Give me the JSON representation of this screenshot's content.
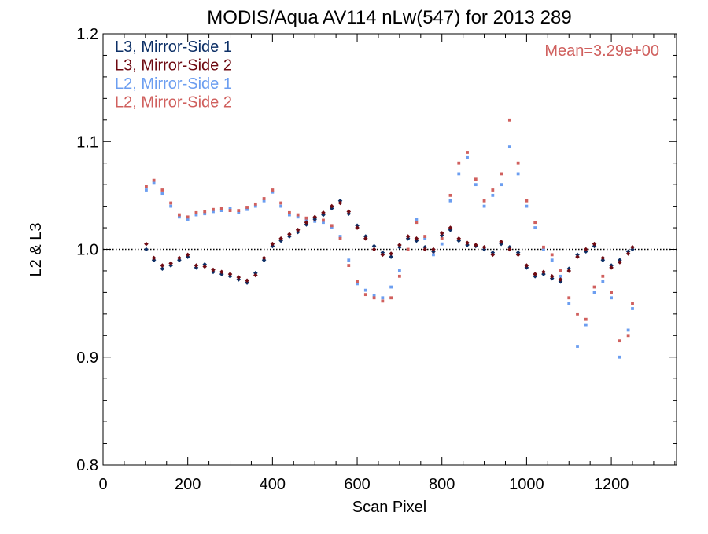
{
  "chart_data": {
    "type": "scatter",
    "title": "MODIS/Aqua AV114 nLw(547) for 2013 289",
    "xlabel": "Scan Pixel",
    "ylabel": "L2 & L3",
    "xlim": [
      0,
      1354
    ],
    "ylim": [
      0.8,
      1.2
    ],
    "x_ticks": [
      0,
      200,
      400,
      600,
      800,
      1000,
      1200
    ],
    "x_tick_labels": [
      "0",
      "200",
      "400",
      "600",
      "800",
      "1000",
      "1200"
    ],
    "y_ticks": [
      0.8,
      0.9,
      1.0,
      1.1,
      1.2
    ],
    "y_tick_labels": [
      "0.8",
      "0.9",
      "1.0",
      "1.1",
      "1.2"
    ],
    "reference_line": 1.0,
    "grid": false,
    "legend_position": "top-left",
    "annotation": "Mean=3.29e+00",
    "annotation_color": "#d0605e",
    "series": [
      {
        "name": "L3, Mirror-Side 1",
        "color": "#0c2f66",
        "marker": "diamond",
        "x": [
          102,
          120,
          140,
          160,
          180,
          200,
          220,
          240,
          260,
          280,
          300,
          320,
          340,
          360,
          380,
          400,
          420,
          440,
          460,
          480,
          500,
          520,
          540,
          560,
          580,
          600,
          620,
          640,
          660,
          680,
          700,
          720,
          740,
          760,
          780,
          800,
          820,
          840,
          860,
          880,
          900,
          920,
          940,
          960,
          980,
          1000,
          1020,
          1040,
          1060,
          1080,
          1100,
          1120,
          1140,
          1160,
          1180,
          1200,
          1220,
          1240,
          1250
        ],
        "y": [
          1.0,
          0.99,
          0.982,
          0.985,
          0.99,
          0.993,
          0.983,
          0.986,
          0.979,
          0.977,
          0.975,
          0.972,
          0.969,
          0.978,
          0.99,
          1.003,
          1.008,
          1.012,
          1.016,
          1.023,
          1.028,
          1.032,
          1.038,
          1.045,
          1.033,
          1.022,
          1.012,
          1.003,
          0.997,
          0.993,
          1.002,
          1.01,
          1.008,
          1.002,
          0.998,
          1.013,
          1.018,
          1.008,
          1.004,
          1.003,
          1.0,
          0.997,
          1.005,
          1.002,
          0.997,
          0.983,
          0.975,
          0.977,
          0.973,
          0.97,
          0.982,
          0.995,
          0.998,
          1.003,
          0.99,
          0.985,
          0.99,
          0.998,
          1.0
        ]
      },
      {
        "name": "L3, Mirror-Side 2",
        "color": "#6e0a12",
        "marker": "diamond",
        "x": [
          102,
          120,
          140,
          160,
          180,
          200,
          220,
          240,
          260,
          280,
          300,
          320,
          340,
          360,
          380,
          400,
          420,
          440,
          460,
          480,
          500,
          520,
          540,
          560,
          580,
          600,
          620,
          640,
          660,
          680,
          700,
          720,
          740,
          760,
          780,
          800,
          820,
          840,
          860,
          880,
          900,
          920,
          940,
          960,
          980,
          1000,
          1020,
          1040,
          1060,
          1080,
          1100,
          1120,
          1140,
          1160,
          1180,
          1200,
          1220,
          1240,
          1250
        ],
        "y": [
          1.005,
          0.992,
          0.985,
          0.987,
          0.992,
          0.995,
          0.985,
          0.984,
          0.981,
          0.979,
          0.977,
          0.974,
          0.971,
          0.976,
          0.992,
          1.005,
          1.01,
          1.014,
          1.018,
          1.025,
          1.03,
          1.034,
          1.04,
          1.043,
          1.035,
          1.02,
          1.01,
          1.0,
          0.995,
          0.996,
          1.004,
          1.012,
          1.01,
          1.0,
          1.0,
          1.015,
          1.02,
          1.01,
          1.006,
          1.004,
          1.002,
          0.995,
          1.007,
          1.0,
          0.995,
          0.985,
          0.977,
          0.979,
          0.975,
          0.972,
          0.98,
          0.993,
          1.0,
          1.005,
          0.992,
          0.983,
          0.988,
          0.996,
          1.002
        ]
      },
      {
        "name": "L2, Mirror-Side 1",
        "color": "#6c9ef0",
        "marker": "square",
        "x": [
          102,
          120,
          140,
          160,
          180,
          200,
          220,
          240,
          260,
          280,
          300,
          320,
          340,
          360,
          380,
          400,
          420,
          440,
          460,
          480,
          500,
          520,
          540,
          560,
          580,
          600,
          620,
          640,
          660,
          680,
          700,
          720,
          740,
          760,
          780,
          800,
          820,
          840,
          860,
          880,
          900,
          920,
          940,
          960,
          980,
          1000,
          1020,
          1040,
          1060,
          1080,
          1100,
          1120,
          1140,
          1160,
          1180,
          1200,
          1220,
          1240,
          1250
        ],
        "y": [
          1.055,
          1.062,
          1.052,
          1.04,
          1.03,
          1.028,
          1.032,
          1.033,
          1.035,
          1.036,
          1.038,
          1.034,
          1.037,
          1.04,
          1.045,
          1.053,
          1.04,
          1.032,
          1.03,
          1.027,
          1.026,
          1.025,
          1.02,
          1.012,
          0.99,
          0.968,
          0.962,
          0.957,
          0.955,
          0.965,
          0.98,
          1.01,
          1.028,
          1.01,
          0.995,
          1.005,
          1.045,
          1.07,
          1.085,
          1.06,
          1.04,
          1.05,
          1.06,
          1.095,
          1.07,
          1.04,
          1.02,
          1.0,
          0.99,
          0.975,
          0.95,
          0.91,
          0.93,
          0.96,
          0.97,
          0.955,
          0.9,
          0.925,
          0.945
        ]
      },
      {
        "name": "L2, Mirror-Side 2",
        "color": "#d0605e",
        "marker": "square",
        "x": [
          102,
          120,
          140,
          160,
          180,
          200,
          220,
          240,
          260,
          280,
          300,
          320,
          340,
          360,
          380,
          400,
          420,
          440,
          460,
          480,
          500,
          520,
          540,
          560,
          580,
          600,
          620,
          640,
          660,
          680,
          700,
          720,
          740,
          760,
          780,
          800,
          820,
          840,
          860,
          880,
          900,
          920,
          940,
          960,
          980,
          1000,
          1020,
          1040,
          1060,
          1080,
          1100,
          1120,
          1140,
          1160,
          1180,
          1200,
          1220,
          1240,
          1250
        ],
        "y": [
          1.058,
          1.064,
          1.055,
          1.043,
          1.032,
          1.03,
          1.034,
          1.035,
          1.037,
          1.038,
          1.036,
          1.036,
          1.039,
          1.042,
          1.047,
          1.055,
          1.043,
          1.034,
          1.032,
          1.029,
          1.028,
          1.027,
          1.022,
          1.01,
          0.985,
          0.97,
          0.958,
          0.955,
          0.952,
          0.955,
          0.975,
          1.0,
          1.025,
          1.012,
          0.998,
          1.01,
          1.05,
          1.08,
          1.09,
          1.065,
          1.045,
          1.055,
          1.07,
          1.12,
          1.08,
          1.045,
          1.025,
          1.002,
          0.995,
          0.98,
          0.955,
          0.94,
          0.935,
          0.965,
          0.975,
          0.96,
          0.915,
          0.92,
          0.95
        ]
      }
    ]
  }
}
